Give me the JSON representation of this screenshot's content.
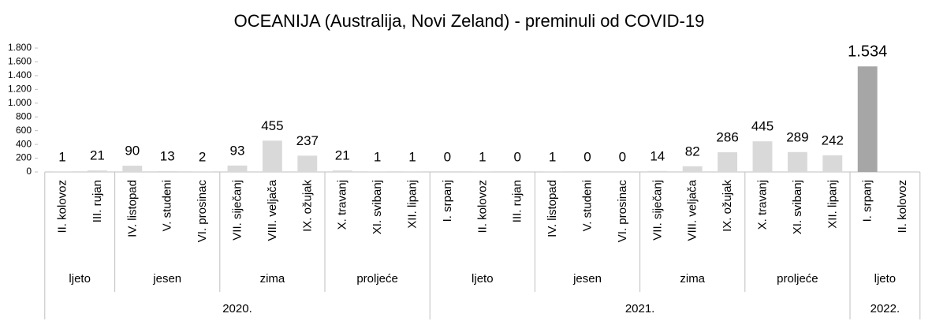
{
  "chart_data": {
    "type": "bar",
    "title": "OCEANIJA (Australija, Novi Zeland) - preminuli od COVID-19",
    "category_groups": [
      {
        "name": "2020.",
        "groups": [
          {
            "name": "ljeto",
            "categories": [
              "II. kolovoz",
              "III. rujan"
            ]
          },
          {
            "name": "jesen",
            "categories": [
              "IV. listopad",
              "V. studeni",
              "VI. prosinac"
            ]
          },
          {
            "name": "zima",
            "categories": [
              "VII. siječanj",
              "VIII. veljača",
              "IX. ožujak"
            ]
          },
          {
            "name": "proljeće",
            "categories": [
              "X. travanj",
              "XI. svibanj",
              "XII. lipanj"
            ]
          }
        ]
      },
      {
        "name": "2021.",
        "groups": [
          {
            "name": "ljeto",
            "categories": [
              "I. srpanj",
              "II. kolovoz",
              "III. rujan"
            ]
          },
          {
            "name": "jesen",
            "categories": [
              "IV. listopad",
              "V. studeni",
              "VI. prosinac"
            ]
          },
          {
            "name": "zima",
            "categories": [
              "VII. siječanj",
              "VIII. veljača",
              "IX. ožujak"
            ]
          },
          {
            "name": "proljeće",
            "categories": [
              "X. travanj",
              "XI. svibanj",
              "XII. lipanj"
            ]
          }
        ]
      },
      {
        "name": "2022.",
        "groups": [
          {
            "name": "ljeto",
            "categories": [
              "I. srpanj",
              "II. kolovoz"
            ]
          }
        ]
      }
    ],
    "values": [
      1,
      21,
      90,
      13,
      2,
      93,
      455,
      237,
      21,
      1,
      1,
      0,
      1,
      0,
      1,
      0,
      0,
      14,
      82,
      286,
      445,
      289,
      242,
      1534,
      null
    ],
    "value_labels": [
      "1",
      "21",
      "90",
      "13",
      "2",
      "93",
      "455",
      "237",
      "21",
      "1",
      "1",
      "0",
      "1",
      "0",
      "1",
      "0",
      "0",
      "14",
      "82",
      "286",
      "445",
      "289",
      "242",
      "1.534",
      null
    ],
    "colors": [
      "#d9d9d9",
      "#d9d9d9",
      "#d9d9d9",
      "#d9d9d9",
      "#d9d9d9",
      "#d9d9d9",
      "#d9d9d9",
      "#d9d9d9",
      "#d9d9d9",
      "#d9d9d9",
      "#d9d9d9",
      "#d9d9d9",
      "#d9d9d9",
      "#d9d9d9",
      "#d9d9d9",
      "#d9d9d9",
      "#d9d9d9",
      "#d9d9d9",
      "#d9d9d9",
      "#d9d9d9",
      "#d9d9d9",
      "#d9d9d9",
      "#d9d9d9",
      "#a6a6a6",
      "#a6a6a6"
    ],
    "ylim": [
      0,
      1800
    ],
    "yticks": [
      0,
      200,
      400,
      600,
      800,
      {
        "value": 1000,
        "label": "1.000"
      },
      {
        "value": 1200,
        "label": "1.200"
      },
      {
        "value": 1400,
        "label": "1.400"
      },
      {
        "value": 1600,
        "label": "1.600"
      },
      {
        "value": 1800,
        "label": "1.800"
      }
    ],
    "grid": false
  }
}
